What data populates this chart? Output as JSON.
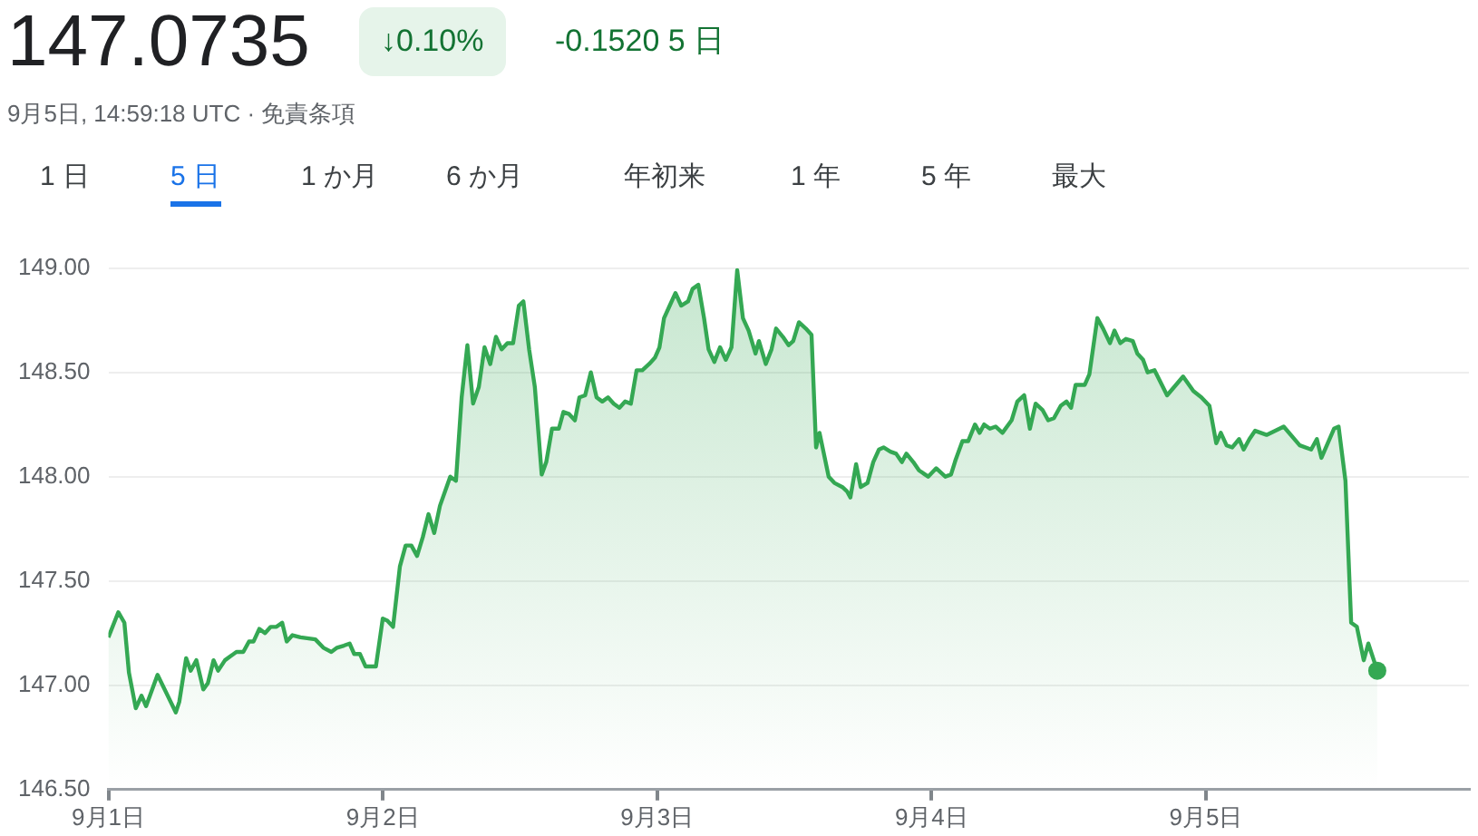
{
  "chart_data": {
    "type": "area",
    "title": "147.0735",
    "subtitle": "9月5日, 14:59:18 UTC · 免責条項",
    "annotations": [
      "↓0.10%",
      "-0.1520 5 日",
      "1 日",
      "5 日",
      "1 か月",
      "6 か月",
      "年初来",
      "1 年",
      "5 年",
      "最大"
    ],
    "x": [
      "--09-01T00:00",
      "--09-01T00:52",
      "--09-01T01:24",
      "--09-01T01:48",
      "--09-01T02:24",
      "--09-01T02:54",
      "--09-01T03:18",
      "--09-01T04:18",
      "--09-01T05:54",
      "--09-01T06:12",
      "--09-01T06:48",
      "--09-01T07:12",
      "--09-01T07:42",
      "--09-01T08:18",
      "--09-01T08:42",
      "--09-01T09:12",
      "--09-01T09:36",
      "--09-01T10:12",
      "--09-01T10:42",
      "--09-01T11:12",
      "--09-01T11:48",
      "--09-01T12:18",
      "--09-01T12:42",
      "--09-01T13:12",
      "--09-01T13:42",
      "--09-01T14:12",
      "--09-01T14:42",
      "--09-01T15:12",
      "--09-01T15:36",
      "--09-01T16:06",
      "--09-01T16:48",
      "--09-01T18:06",
      "--09-01T18:48",
      "--09-01T19:30",
      "--09-01T20:00",
      "--09-01T20:36",
      "--09-01T21:06",
      "--09-01T21:30",
      "--09-01T22:00",
      "--09-01T22:30",
      "--09-01T23:24",
      "--09-02T00:00",
      "--09-02T00:24",
      "--09-02T00:54",
      "--09-02T01:30",
      "--09-02T02:00",
      "--09-02T02:30",
      "--09-02T03:00",
      "--09-02T03:30",
      "--09-02T04:00",
      "--09-02T04:30",
      "--09-02T05:00",
      "--09-02T05:54",
      "--09-02T06:24",
      "--09-02T06:54",
      "--09-02T07:24",
      "--09-02T07:54",
      "--09-02T08:24",
      "--09-02T08:54",
      "--09-02T09:24",
      "--09-02T09:54",
      "--09-02T10:24",
      "--09-02T10:54",
      "--09-02T11:24",
      "--09-02T11:54",
      "--09-02T12:18",
      "--09-02T12:48",
      "--09-02T13:18",
      "--09-02T13:54",
      "--09-02T14:18",
      "--09-02T14:48",
      "--09-02T15:24",
      "--09-02T15:48",
      "--09-02T16:18",
      "--09-02T16:48",
      "--09-02T17:12",
      "--09-02T17:42",
      "--09-02T18:12",
      "--09-02T18:42",
      "--09-02T19:12",
      "--09-02T19:42",
      "--09-02T20:12",
      "--09-02T20:42",
      "--09-02T21:12",
      "--09-02T21:42",
      "--09-02T22:12",
      "--09-02T22:42",
      "--09-02T23:18",
      "--09-02T23:48",
      "--09-03T00:12",
      "--09-03T00:36",
      "--09-03T01:06",
      "--09-03T01:36",
      "--09-03T02:06",
      "--09-03T02:42",
      "--09-03T03:06",
      "--09-03T03:36",
      "--09-03T04:06",
      "--09-03T04:30",
      "--09-03T05:00",
      "--09-03T05:30",
      "--09-03T06:00",
      "--09-03T06:30",
      "--09-03T07:00",
      "--09-03T07:30",
      "--09-03T08:00",
      "--09-03T08:36",
      "--09-03T08:54",
      "--09-03T09:30",
      "--09-03T10:00",
      "--09-03T10:24",
      "--09-03T11:00",
      "--09-03T11:30",
      "--09-03T11:54",
      "--09-03T12:24",
      "--09-03T13:00",
      "--09-03T13:30",
      "--09-03T13:54",
      "--09-03T14:12",
      "--09-03T15:00",
      "--09-03T15:30",
      "--09-03T16:12",
      "--09-03T16:36",
      "--09-03T16:54",
      "--09-03T17:24",
      "--09-03T17:48",
      "--09-03T18:24",
      "--09-03T18:54",
      "--09-03T19:24",
      "--09-03T19:48",
      "--09-03T20:24",
      "--09-03T20:54",
      "--09-03T21:24",
      "--09-03T21:48",
      "--09-03T22:24",
      "--09-03T22:54",
      "--09-03T23:42",
      "--09-04T00:24",
      "--09-04T01:12",
      "--09-04T01:42",
      "--09-04T02:06",
      "--09-04T02:42",
      "--09-04T03:12",
      "--09-04T03:48",
      "--09-04T04:12",
      "--09-04T04:36",
      "--09-04T05:06",
      "--09-04T05:36",
      "--09-04T06:12",
      "--09-04T07:00",
      "--09-04T07:30",
      "--09-04T08:06",
      "--09-04T08:36",
      "--09-04T09:06",
      "--09-04T09:42",
      "--09-04T10:12",
      "--09-04T10:42",
      "--09-04T11:18",
      "--09-04T11:48",
      "--09-04T12:12",
      "--09-04T12:36",
      "--09-04T13:24",
      "--09-04T13:48",
      "--09-04T14:30",
      "--09-04T15:00",
      "--09-04T15:36",
      "--09-04T16:00",
      "--09-04T16:30",
      "--09-04T17:00",
      "--09-04T17:36",
      "--09-04T18:00",
      "--09-04T18:30",
      "--09-04T18:54",
      "--09-04T19:30",
      "--09-04T20:36",
      "--09-04T22:00",
      "--09-04T22:54",
      "--09-04T23:36",
      "--09-05T00:18",
      "--09-05T00:54",
      "--09-05T01:18",
      "--09-05T01:48",
      "--09-05T02:18",
      "--09-05T02:54",
      "--09-05T03:18",
      "--09-05T03:48",
      "--09-05T04:18",
      "--09-05T05:18",
      "--09-05T06:48",
      "--09-05T08:12",
      "--09-05T09:12",
      "--09-05T09:42",
      "--09-05T10:06",
      "--09-05T11:12",
      "--09-05T11:36",
      "--09-05T12:12",
      "--09-05T12:42",
      "--09-05T13:12",
      "--09-05T13:48",
      "--09-05T14:12",
      "--09-05T14:59"
    ],
    "series": [
      {
        "color": "#34a853",
        "values": [
          147.23,
          147.35,
          147.3,
          147.06,
          146.89,
          146.95,
          146.9,
          147.05,
          146.87,
          146.92,
          147.13,
          147.07,
          147.12,
          146.98,
          147.01,
          147.12,
          147.07,
          147.12,
          147.14,
          147.16,
          147.16,
          147.21,
          147.21,
          147.27,
          147.25,
          147.28,
          147.28,
          147.3,
          147.21,
          147.24,
          147.23,
          147.22,
          147.18,
          147.16,
          147.18,
          147.19,
          147.2,
          147.15,
          147.15,
          147.09,
          147.09,
          147.32,
          147.31,
          147.28,
          147.57,
          147.67,
          147.67,
          147.62,
          147.71,
          147.82,
          147.73,
          147.86,
          148.0,
          147.98,
          148.38,
          148.63,
          148.35,
          148.43,
          148.62,
          148.54,
          148.67,
          148.61,
          148.64,
          148.64,
          148.82,
          148.84,
          148.61,
          148.43,
          148.01,
          148.07,
          148.23,
          148.23,
          148.31,
          148.3,
          148.27,
          148.38,
          148.39,
          148.5,
          148.38,
          148.36,
          148.38,
          148.35,
          148.33,
          148.36,
          148.35,
          148.51,
          148.51,
          148.54,
          148.57,
          148.62,
          148.76,
          148.82,
          148.88,
          148.82,
          148.84,
          148.9,
          148.92,
          148.76,
          148.61,
          148.55,
          148.62,
          148.56,
          148.62,
          148.99,
          148.76,
          148.7,
          148.59,
          148.65,
          148.54,
          148.61,
          148.71,
          148.67,
          148.63,
          148.65,
          148.74,
          148.71,
          148.68,
          148.14,
          148.21,
          148.0,
          147.97,
          147.95,
          147.93,
          147.9,
          148.06,
          147.95,
          147.97,
          148.07,
          148.13,
          148.14,
          148.12,
          148.11,
          148.07,
          148.11,
          148.07,
          148.03,
          148.0,
          148.04,
          148.0,
          148.01,
          148.08,
          148.17,
          148.17,
          148.25,
          148.21,
          148.25,
          148.23,
          148.24,
          148.21,
          148.27,
          148.36,
          148.39,
          148.23,
          148.35,
          148.32,
          148.27,
          148.28,
          148.34,
          148.36,
          148.33,
          148.44,
          148.44,
          148.49,
          148.76,
          148.71,
          148.64,
          148.7,
          148.64,
          148.66,
          148.65,
          148.59,
          148.56,
          148.5,
          148.51,
          148.39,
          148.48,
          148.41,
          148.38,
          148.34,
          148.16,
          148.21,
          148.15,
          148.14,
          148.18,
          148.13,
          148.18,
          148.22,
          148.2,
          148.24,
          148.15,
          148.13,
          148.18,
          148.09,
          148.23,
          148.24,
          147.98,
          147.3,
          147.28,
          147.12,
          147.2,
          147.07
        ]
      }
    ],
    "xlim": [
      "--09-01T00:00",
      "--09-05T23:00"
    ],
    "xticks": [
      {
        "value": "--09-01",
        "label": "9月1日"
      },
      {
        "value": "--09-02",
        "label": "9月2日"
      },
      {
        "value": "--09-03",
        "label": "9月3日"
      },
      {
        "value": "--09-04",
        "label": "9月4日"
      },
      {
        "value": "--09-05",
        "label": "9月5日"
      }
    ],
    "ylim": [
      146.5,
      149.0
    ],
    "yticks": [
      {
        "value": 146.5,
        "label": "146.50"
      },
      {
        "value": 147,
        "label": "147.00"
      },
      {
        "value": 147.5,
        "label": "147.50"
      },
      {
        "value": 148,
        "label": "148.00"
      },
      {
        "value": 148.5,
        "label": "148.50"
      },
      {
        "value": 149,
        "label": "149.00"
      }
    ],
    "grid": "y",
    "legend": false
  }
}
